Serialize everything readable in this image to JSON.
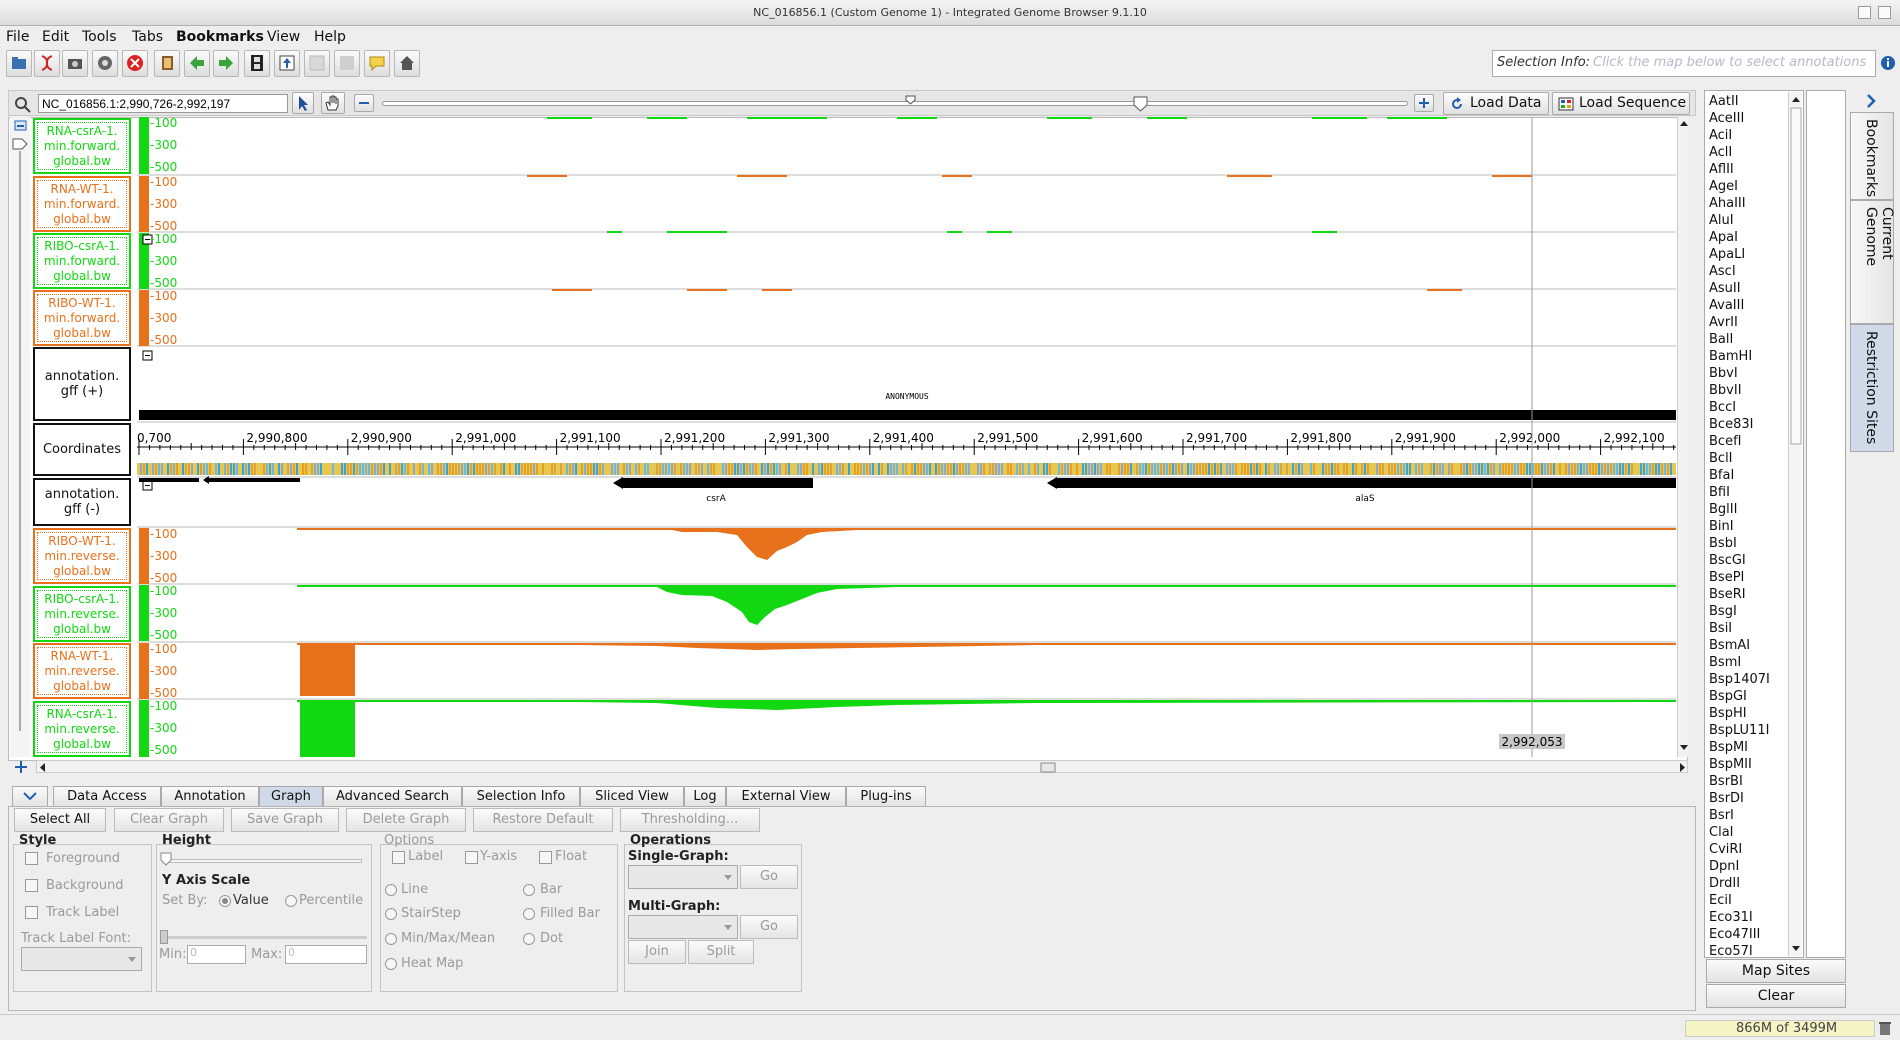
{
  "window": {
    "title": "NC_016856.1  (Custom Genome 1) - Integrated Genome Browser 9.1.10"
  },
  "menubar": [
    "File",
    "Edit",
    "Tools",
    "Tabs",
    "Bookmarks",
    "View",
    "Help"
  ],
  "toolbar": {
    "buttons": [
      "open-icon",
      "dna-icon",
      "camera-icon",
      "gear-icon",
      "stop-icon",
      "book-icon",
      "back-icon",
      "forward-icon",
      "film-icon",
      "upload-icon",
      "blank-icon",
      "blank-icon",
      "comment-icon",
      "home-icon"
    ],
    "selection_info_label": "Selection Info:",
    "selection_info_placeholder": "Click the map below to select annotations"
  },
  "location": {
    "value": "NC_016856.1:2,990,726-2,992,197",
    "load_data": "Load Data",
    "load_sequence": "Load Sequence"
  },
  "tracks": {
    "top": [
      {
        "label": "RNA-csrA-1.\nmin.forward.\nglobal.bw",
        "color": "green"
      },
      {
        "label": "RNA-WT-1.\nmin.forward.\nglobal.bw",
        "color": "orange"
      },
      {
        "label": "RIBO-csrA-1.\nmin.forward.\nglobal.bw",
        "color": "green"
      },
      {
        "label": "RIBO-WT-1.\nmin.forward.\nglobal.bw",
        "color": "orange"
      }
    ],
    "annotation_plus": "annotation.\ngff (+)",
    "coordinates": "Coordinates",
    "annotation_minus": "annotation.\ngff (-)",
    "bottom": [
      {
        "label": "RIBO-WT-1.\nmin.reverse.\nglobal.bw",
        "color": "orange"
      },
      {
        "label": "RIBO-csrA-1.\nmin.reverse.\nglobal.bw",
        "color": "green"
      },
      {
        "label": "RNA-WT-1.\nmin.reverse.\nglobal.bw",
        "color": "orange"
      },
      {
        "label": "RNA-csrA-1.\nmin.reverse.\nglobal.bw",
        "color": "green"
      }
    ],
    "axis_ticks": [
      "-100",
      "-300",
      "-500"
    ],
    "anonymous_label": "ANONYMOUS",
    "gene_labels": [
      "csrA",
      "alaS"
    ],
    "ruler_ticks": [
      "0,700",
      "2,990,800",
      "2,990,900",
      "2,991,000",
      "2,991,100",
      "2,991,200",
      "2,991,300",
      "2,991,400",
      "2,991,500",
      "2,991,600",
      "2,991,700",
      "2,991,800",
      "2,991,900",
      "2,992,000",
      "2,992,100"
    ],
    "cursor_position": "2,992,053",
    "colors": {
      "green": "#11d811",
      "orange": "#e8711c"
    }
  },
  "tabs": [
    "Data Access",
    "Annotation",
    "Graph",
    "Advanced Search",
    "Selection Info",
    "Sliced View",
    "Log",
    "External View",
    "Plug-ins"
  ],
  "active_tab": "Graph",
  "graph_panel": {
    "buttons": [
      "Select All",
      "Clear Graph",
      "Save Graph",
      "Delete Graph",
      "Restore Default",
      "Thresholding..."
    ],
    "style": {
      "title": "Style",
      "foreground": "Foreground",
      "background": "Background",
      "track_label": "Track Label",
      "track_label_font": "Track Label Font:"
    },
    "height": {
      "title": "Height"
    },
    "yaxis": {
      "title": "Y Axis Scale",
      "set_by": "Set By:",
      "value": "Value",
      "percentile": "Percentile",
      "min": "Min:",
      "max": "Max:",
      "min_value": "0",
      "max_value": "0"
    },
    "options": {
      "title": "Options",
      "label": "Label",
      "yaxis": "Y-axis",
      "float": "Float",
      "line": "Line",
      "bar": "Bar",
      "stairstep": "StairStep",
      "filled_bar": "Filled Bar",
      "minmaxmean": "Min/Max/Mean",
      "dot": "Dot",
      "heatmap": "Heat Map"
    },
    "operations": {
      "title": "Operations",
      "single": "Single-Graph:",
      "multi": "Multi-Graph:",
      "go": "Go",
      "join": "Join",
      "split": "Split"
    }
  },
  "restriction_enzymes": [
    "AatII",
    "AceIII",
    "AciI",
    "AclI",
    "AflII",
    "AgeI",
    "AhaIII",
    "AluI",
    "ApaI",
    "ApaLI",
    "AscI",
    "AsuII",
    "AvaIII",
    "AvrII",
    "BalI",
    "BamHI",
    "BbvI",
    "BbvII",
    "BccI",
    "Bce83I",
    "BcefI",
    "BclI",
    "BfaI",
    "BfiI",
    "BglII",
    "BinI",
    "BsbI",
    "BscGI",
    "BsePI",
    "BseRI",
    "BsgI",
    "BsiI",
    "BsmAI",
    "BsmI",
    "Bsp1407I",
    "BspGI",
    "BspHI",
    "BspLU11I",
    "BspMI",
    "BspMII",
    "BsrBI",
    "BsrDI",
    "BsrI",
    "ClaI",
    "CviRI",
    "DpnI",
    "DrdII",
    "EciI",
    "Eco31I",
    "Eco47III",
    "Eco57I"
  ],
  "right_buttons": {
    "map_sites": "Map Sites",
    "clear": "Clear"
  },
  "side_tabs": [
    "Bookmarks",
    "Current Genome",
    "Restriction Sites"
  ],
  "status": {
    "memory": "866M of 3499M"
  }
}
